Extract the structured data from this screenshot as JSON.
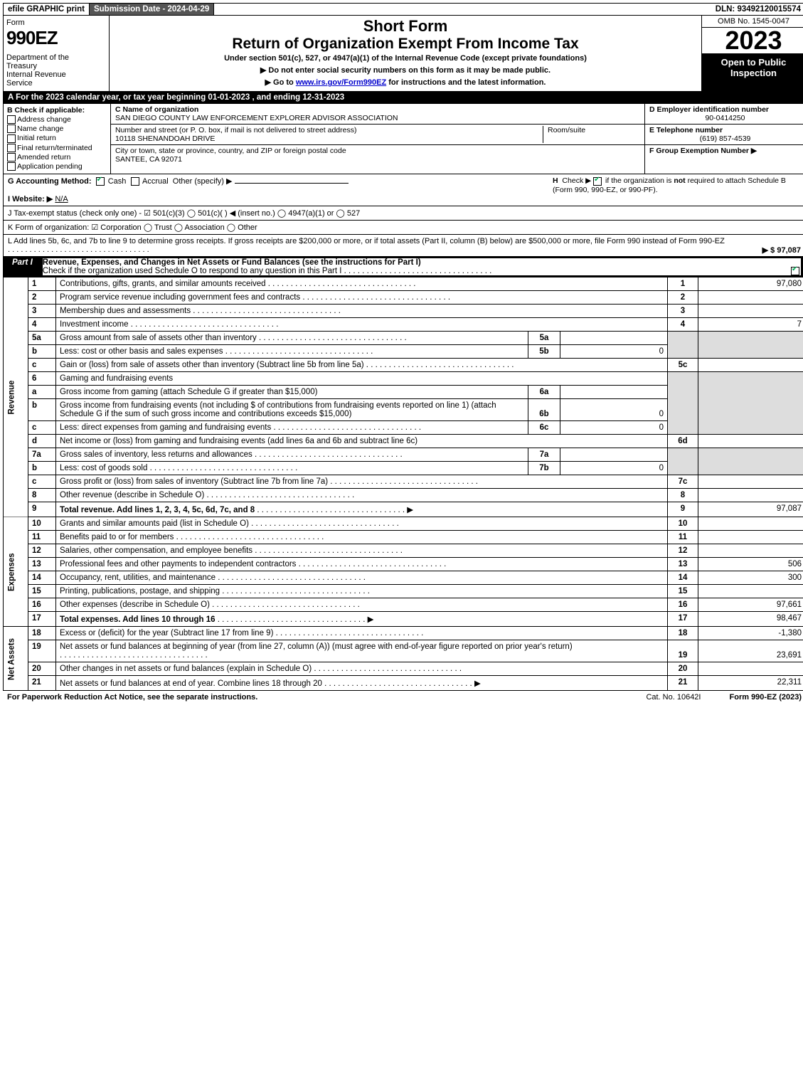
{
  "topbar": {
    "efile": "efile GRAPHIC print",
    "submission": "Submission Date - 2024-04-29",
    "dln": "DLN: 93492120015574"
  },
  "header": {
    "form_word": "Form",
    "form_num": "990EZ",
    "dept": "Department of the Treasury\nInternal Revenue Service",
    "short": "Short Form",
    "title": "Return of Organization Exempt From Income Tax",
    "subtitle": "Under section 501(c), 527, or 4947(a)(1) of the Internal Revenue Code (except private foundations)",
    "note1": "▶ Do not enter social security numbers on this form as it may be made public.",
    "note2_pre": "▶ Go to ",
    "note2_link": "www.irs.gov/Form990EZ",
    "note2_post": " for instructions and the latest information.",
    "omb": "OMB No. 1545-0047",
    "year": "2023",
    "inspect": "Open to Public Inspection"
  },
  "rowA": "A  For the 2023 calendar year, or tax year beginning 01-01-2023 , and ending 12-31-2023",
  "B": {
    "label": "B  Check if applicable:",
    "opts": [
      "Address change",
      "Name change",
      "Initial return",
      "Final return/terminated",
      "Amended return",
      "Application pending"
    ]
  },
  "C": {
    "name_label": "C Name of organization",
    "name": "SAN DIEGO COUNTY LAW ENFORCEMENT EXPLORER ADVISOR ASSOCIATION",
    "street_label": "Number and street (or P. O. box, if mail is not delivered to street address)",
    "street": "10118 SHENANDOAH DRIVE",
    "room_label": "Room/suite",
    "city_label": "City or town, state or province, country, and ZIP or foreign postal code",
    "city": "SANTEE, CA  92071"
  },
  "D": {
    "label": "D Employer identification number",
    "val": "90-0414250"
  },
  "E": {
    "label": "E Telephone number",
    "val": "(619) 857-4539"
  },
  "F": {
    "label": "F Group Exemption Number  ▶"
  },
  "G": {
    "label": "G Accounting Method:",
    "cash": "Cash",
    "accrual": "Accrual",
    "other": "Other (specify) ▶"
  },
  "H": {
    "text": "H  Check ▶ ☑ if the organization is not required to attach Schedule B (Form 990, 990-EZ, or 990-PF)."
  },
  "I": {
    "label": "I Website: ▶",
    "val": "N/A"
  },
  "J": {
    "text": "J Tax-exempt status (check only one) - ☑ 501(c)(3)  ◯ 501(c)(  ) ◀ (insert no.)  ◯ 4947(a)(1) or  ◯ 527"
  },
  "K": {
    "text": "K Form of organization:  ☑ Corporation  ◯ Trust  ◯ Association  ◯ Other"
  },
  "L": {
    "text": "L Add lines 5b, 6c, and 7b to line 9 to determine gross receipts. If gross receipts are $200,000 or more, or if total assets (Part II, column (B) below) are $500,000 or more, file Form 990 instead of Form 990-EZ",
    "amount": "▶ $ 97,087"
  },
  "part1": {
    "tag": "Part I",
    "title": "Revenue, Expenses, and Changes in Net Assets or Fund Balances (see the instructions for Part I)",
    "check": "Check if the organization used Schedule O to respond to any question in this Part I"
  },
  "sides": {
    "rev": "Revenue",
    "exp": "Expenses",
    "na": "Net Assets"
  },
  "lines": {
    "l1": {
      "n": "1",
      "d": "Contributions, gifts, grants, and similar amounts received",
      "r": "1",
      "v": "97,080"
    },
    "l2": {
      "n": "2",
      "d": "Program service revenue including government fees and contracts",
      "r": "2",
      "v": ""
    },
    "l3": {
      "n": "3",
      "d": "Membership dues and assessments",
      "r": "3",
      "v": ""
    },
    "l4": {
      "n": "4",
      "d": "Investment income",
      "r": "4",
      "v": "7"
    },
    "l5a": {
      "n": "5a",
      "d": "Gross amount from sale of assets other than inventory",
      "in": "5a",
      "iv": ""
    },
    "l5b": {
      "n": "b",
      "d": "Less: cost or other basis and sales expenses",
      "in": "5b",
      "iv": "0"
    },
    "l5c": {
      "n": "c",
      "d": "Gain or (loss) from sale of assets other than inventory (Subtract line 5b from line 5a)",
      "r": "5c",
      "v": ""
    },
    "l6": {
      "n": "6",
      "d": "Gaming and fundraising events"
    },
    "l6a": {
      "n": "a",
      "d": "Gross income from gaming (attach Schedule G if greater than $15,000)",
      "in": "6a",
      "iv": ""
    },
    "l6b": {
      "n": "b",
      "d": "Gross income from fundraising events (not including $                   of contributions from fundraising events reported on line 1) (attach Schedule G if the sum of such gross income and contributions exceeds $15,000)",
      "in": "6b",
      "iv": "0"
    },
    "l6c": {
      "n": "c",
      "d": "Less: direct expenses from gaming and fundraising events",
      "in": "6c",
      "iv": "0"
    },
    "l6d": {
      "n": "d",
      "d": "Net income or (loss) from gaming and fundraising events (add lines 6a and 6b and subtract line 6c)",
      "r": "6d",
      "v": ""
    },
    "l7a": {
      "n": "7a",
      "d": "Gross sales of inventory, less returns and allowances",
      "in": "7a",
      "iv": ""
    },
    "l7b": {
      "n": "b",
      "d": "Less: cost of goods sold",
      "in": "7b",
      "iv": "0"
    },
    "l7c": {
      "n": "c",
      "d": "Gross profit or (loss) from sales of inventory (Subtract line 7b from line 7a)",
      "r": "7c",
      "v": ""
    },
    "l8": {
      "n": "8",
      "d": "Other revenue (describe in Schedule O)",
      "r": "8",
      "v": ""
    },
    "l9": {
      "n": "9",
      "d": "Total revenue. Add lines 1, 2, 3, 4, 5c, 6d, 7c, and 8",
      "r": "9",
      "v": "97,087"
    },
    "l10": {
      "n": "10",
      "d": "Grants and similar amounts paid (list in Schedule O)",
      "r": "10",
      "v": ""
    },
    "l11": {
      "n": "11",
      "d": "Benefits paid to or for members",
      "r": "11",
      "v": ""
    },
    "l12": {
      "n": "12",
      "d": "Salaries, other compensation, and employee benefits",
      "r": "12",
      "v": ""
    },
    "l13": {
      "n": "13",
      "d": "Professional fees and other payments to independent contractors",
      "r": "13",
      "v": "506"
    },
    "l14": {
      "n": "14",
      "d": "Occupancy, rent, utilities, and maintenance",
      "r": "14",
      "v": "300"
    },
    "l15": {
      "n": "15",
      "d": "Printing, publications, postage, and shipping",
      "r": "15",
      "v": ""
    },
    "l16": {
      "n": "16",
      "d": "Other expenses (describe in Schedule O)",
      "r": "16",
      "v": "97,661"
    },
    "l17": {
      "n": "17",
      "d": "Total expenses. Add lines 10 through 16",
      "r": "17",
      "v": "98,467"
    },
    "l18": {
      "n": "18",
      "d": "Excess or (deficit) for the year (Subtract line 17 from line 9)",
      "r": "18",
      "v": "-1,380"
    },
    "l19": {
      "n": "19",
      "d": "Net assets or fund balances at beginning of year (from line 27, column (A)) (must agree with end-of-year figure reported on prior year's return)",
      "r": "19",
      "v": "23,691"
    },
    "l20": {
      "n": "20",
      "d": "Other changes in net assets or fund balances (explain in Schedule O)",
      "r": "20",
      "v": ""
    },
    "l21": {
      "n": "21",
      "d": "Net assets or fund balances at end of year. Combine lines 18 through 20",
      "r": "21",
      "v": "22,311"
    }
  },
  "footer": {
    "pra": "For Paperwork Reduction Act Notice, see the separate instructions.",
    "cat": "Cat. No. 10642I",
    "form": "Form 990-EZ (2023)"
  }
}
